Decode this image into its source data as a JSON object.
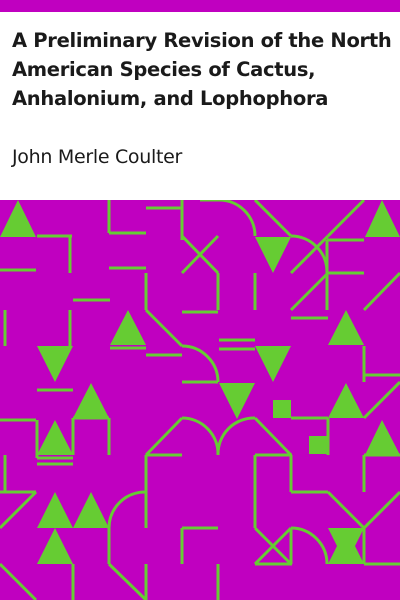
{
  "book": {
    "title_lines": [
      "A Preliminary Revision of the North",
      "American Species of Cactus,",
      "Anhalonium, and Lophophora"
    ],
    "author": "John Merle Coulter"
  },
  "colors": {
    "top_bar": "#c000c0",
    "background": "#c000c0",
    "pattern": "#66cc33"
  }
}
